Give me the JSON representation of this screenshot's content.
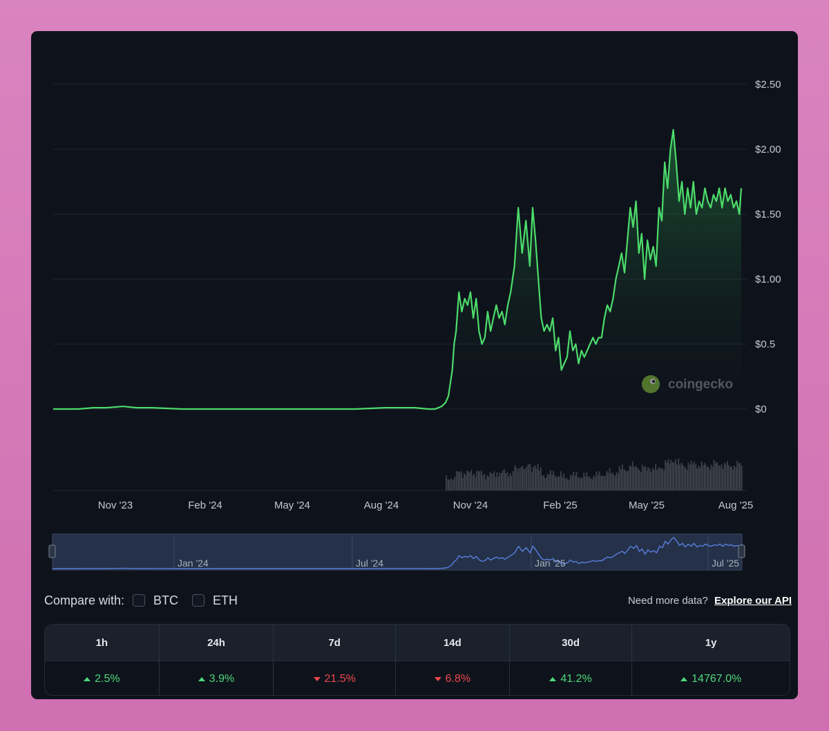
{
  "chart_data": {
    "type": "area",
    "x": [
      "2023-08-20",
      "2023-09-01",
      "2023-09-15",
      "2023-10-01",
      "2023-10-15",
      "2023-11-01",
      "2023-11-15",
      "2023-12-01",
      "2024-01-01",
      "2024-02-01",
      "2024-03-01",
      "2024-04-01",
      "2024-05-01",
      "2024-06-01",
      "2024-07-01",
      "2024-08-01",
      "2024-09-01",
      "2024-09-15",
      "2024-09-22",
      "2024-09-29",
      "2024-10-03",
      "2024-10-06",
      "2024-10-08",
      "2024-10-10",
      "2024-10-12",
      "2024-10-14",
      "2024-10-17",
      "2024-10-20",
      "2024-10-23",
      "2024-10-26",
      "2024-10-29",
      "2024-11-01",
      "2024-11-04",
      "2024-11-07",
      "2024-11-10",
      "2024-11-13",
      "2024-11-16",
      "2024-11-19",
      "2024-11-22",
      "2024-11-25",
      "2024-11-28",
      "2024-12-01",
      "2024-12-04",
      "2024-12-07",
      "2024-12-10",
      "2024-12-14",
      "2024-12-18",
      "2024-12-22",
      "2024-12-26",
      "2024-12-30",
      "2025-01-02",
      "2025-01-05",
      "2025-01-08",
      "2025-01-11",
      "2025-01-14",
      "2025-01-17",
      "2025-01-20",
      "2025-01-23",
      "2025-01-26",
      "2025-01-29",
      "2025-02-01",
      "2025-02-04",
      "2025-02-07",
      "2025-02-10",
      "2025-02-13",
      "2025-02-16",
      "2025-02-19",
      "2025-02-22",
      "2025-02-25",
      "2025-02-28",
      "2025-03-03",
      "2025-03-06",
      "2025-03-09",
      "2025-03-12",
      "2025-03-15",
      "2025-03-18",
      "2025-03-21",
      "2025-03-24",
      "2025-03-27",
      "2025-03-30",
      "2025-04-02",
      "2025-04-05",
      "2025-04-08",
      "2025-04-11",
      "2025-04-14",
      "2025-04-17",
      "2025-04-20",
      "2025-04-23",
      "2025-04-26",
      "2025-04-29",
      "2025-05-02",
      "2025-05-05",
      "2025-05-08",
      "2025-05-11",
      "2025-05-14",
      "2025-05-17",
      "2025-05-20",
      "2025-05-23",
      "2025-05-26",
      "2025-05-29",
      "2025-06-01",
      "2025-06-04",
      "2025-06-07",
      "2025-06-10",
      "2025-06-13",
      "2025-06-16",
      "2025-06-19",
      "2025-06-22",
      "2025-06-25",
      "2025-06-28",
      "2025-07-01",
      "2025-07-04",
      "2025-07-07",
      "2025-07-10",
      "2025-07-13",
      "2025-07-16",
      "2025-07-19",
      "2025-07-22",
      "2025-07-25",
      "2025-07-28",
      "2025-07-31",
      "2025-08-03",
      "2025-08-06",
      "2025-08-08"
    ],
    "values": [
      0.0,
      0.0,
      0.0,
      0.01,
      0.01,
      0.02,
      0.01,
      0.01,
      0.0,
      0.0,
      0.0,
      0.0,
      0.0,
      0.0,
      0.0,
      0.01,
      0.01,
      0.0,
      0.0,
      0.02,
      0.05,
      0.1,
      0.2,
      0.3,
      0.5,
      0.6,
      0.9,
      0.75,
      0.85,
      0.8,
      0.9,
      0.7,
      0.85,
      0.6,
      0.5,
      0.55,
      0.75,
      0.6,
      0.7,
      0.8,
      0.7,
      0.75,
      0.65,
      0.8,
      0.9,
      1.1,
      1.55,
      1.2,
      1.45,
      1.1,
      1.55,
      1.3,
      1.0,
      0.7,
      0.6,
      0.65,
      0.6,
      0.7,
      0.45,
      0.55,
      0.3,
      0.35,
      0.4,
      0.6,
      0.45,
      0.5,
      0.35,
      0.45,
      0.4,
      0.45,
      0.5,
      0.55,
      0.5,
      0.55,
      0.55,
      0.7,
      0.8,
      0.75,
      0.85,
      1.0,
      1.1,
      1.2,
      1.05,
      1.3,
      1.55,
      1.4,
      1.6,
      1.2,
      1.35,
      1.0,
      1.3,
      1.15,
      1.25,
      1.1,
      1.55,
      1.45,
      1.9,
      1.7,
      2.0,
      2.15,
      1.9,
      1.6,
      1.75,
      1.5,
      1.7,
      1.55,
      1.75,
      1.5,
      1.6,
      1.55,
      1.7,
      1.6,
      1.55,
      1.65,
      1.6,
      1.7,
      1.55,
      1.7,
      1.6,
      1.65,
      1.55,
      1.6,
      1.5,
      1.7
    ],
    "x_tick_labels": [
      "Nov '23",
      "Feb '24",
      "May '24",
      "Aug '24",
      "Nov '24",
      "Feb '25",
      "May '25",
      "Aug '25"
    ],
    "y_tick_labels": [
      "$0",
      "$0.5",
      "$1.00",
      "$1.50",
      "$2.00",
      "$2.50"
    ],
    "y_ticks": [
      0,
      0.5,
      1.0,
      1.5,
      2.0,
      2.5
    ],
    "ylim": [
      0,
      2.5
    ],
    "xlim": [
      "2023-08-20",
      "2025-08-08"
    ],
    "line_color": "#4ddc6b",
    "area_fill": "#1f6b3a",
    "grid": true,
    "navigator_labels": [
      "Jan '24",
      "Jul '24",
      "Jan '25",
      "Jul '25"
    ],
    "watermark": "coingecko"
  },
  "compare": {
    "label": "Compare with:",
    "options": [
      "BTC",
      "ETH"
    ]
  },
  "api_note": {
    "text": "Need more data?",
    "link": "Explore our API"
  },
  "stats": [
    {
      "period": "1h",
      "change": "2.5%",
      "direction": "up"
    },
    {
      "period": "24h",
      "change": "3.9%",
      "direction": "up"
    },
    {
      "period": "7d",
      "change": "21.5%",
      "direction": "down"
    },
    {
      "period": "14d",
      "change": "6.8%",
      "direction": "down"
    },
    {
      "period": "30d",
      "change": "41.2%",
      "direction": "up"
    },
    {
      "period": "1y",
      "change": "14767.0%",
      "direction": "up"
    }
  ]
}
